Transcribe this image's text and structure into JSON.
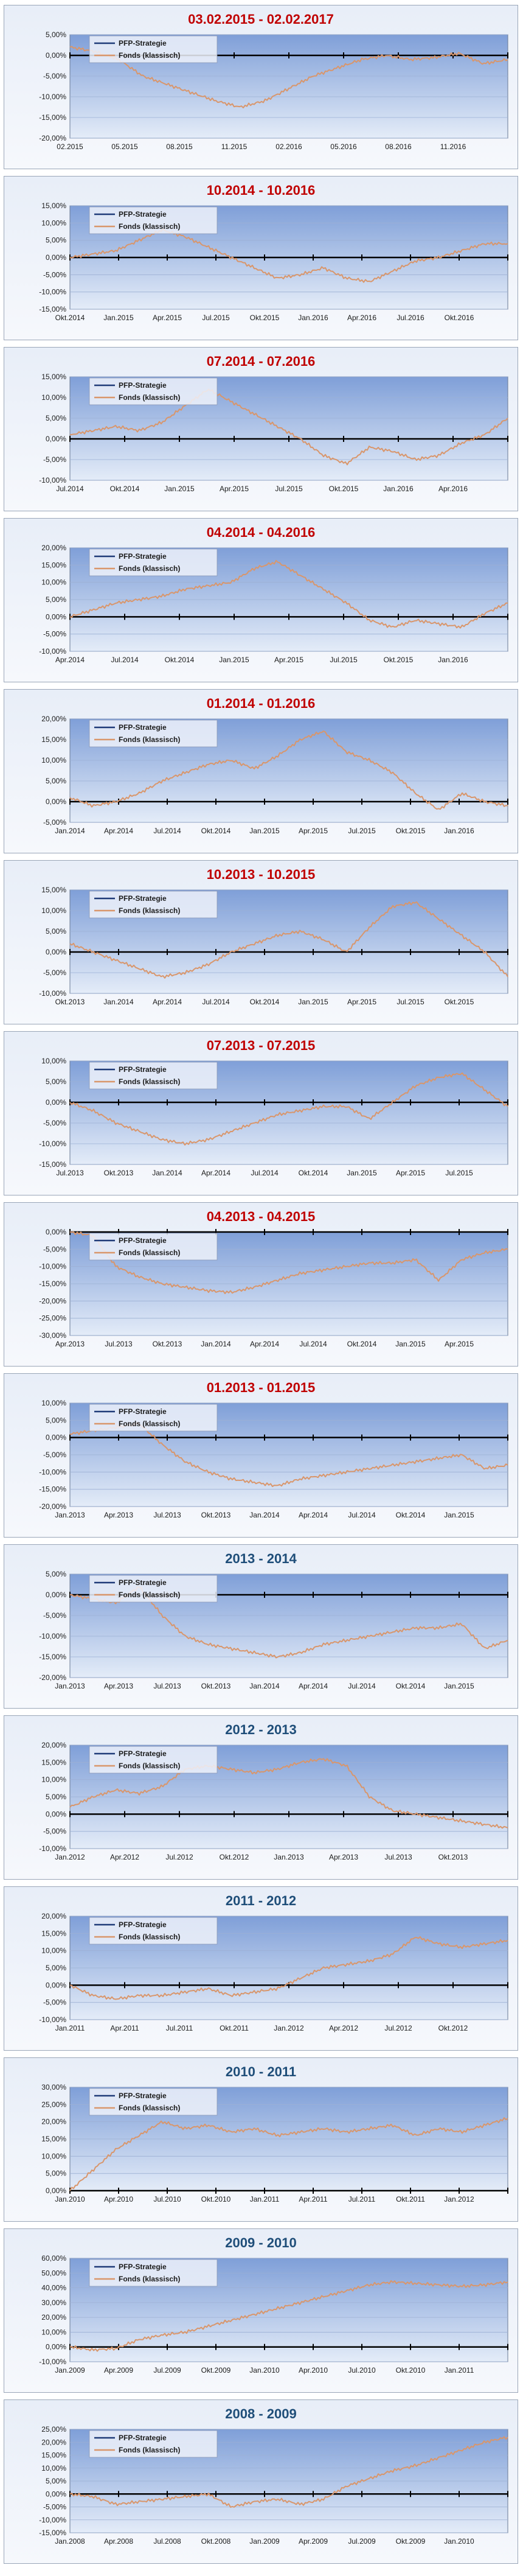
{
  "legend": {
    "strategy": "PFP-Strategie",
    "fund": "Fonds (klassisch)"
  },
  "colors": {
    "title_red": "#c00000",
    "title_blue": "#1f4e79",
    "fund_line": "#d9966b",
    "strategy_line": "#1f3a78",
    "zero_line": "#000000"
  },
  "chart_data": [
    {
      "type": "line",
      "title": "03.02.2015 - 02.02.2017",
      "title_color": "red",
      "ylim": [
        -20,
        5
      ],
      "yticks": [
        5,
        0,
        -5,
        -10,
        -15,
        -20
      ],
      "ytick_labels": [
        "5,00%",
        "0,00%",
        "-5,00%",
        "-10,00%",
        "-15,00%",
        "-20,00%"
      ],
      "xtick_labels": [
        "02.2015",
        "05.2015",
        "08.2015",
        "11.2015",
        "02.2016",
        "05.2016",
        "08.2016",
        "11.2016"
      ],
      "legend_position": "top-left",
      "fund_y": [
        2.0,
        1.0,
        -1.0,
        -5.0,
        -7.0,
        -9.0,
        -11.0,
        -12.5,
        -11.0,
        -8.0,
        -5.0,
        -3.0,
        -1.0,
        0.0,
        -1.0,
        -0.5,
        0.5,
        -2.0,
        -1.0
      ]
    },
    {
      "type": "line",
      "title": "10.2014 - 10.2016",
      "title_color": "red",
      "ylim": [
        -15,
        15
      ],
      "yticks": [
        15,
        10,
        5,
        0,
        -5,
        -10,
        -15
      ],
      "ytick_labels": [
        "15,00%",
        "10,00%",
        "5,00%",
        "0,00%",
        "-5,00%",
        "-10,00%",
        "-15,00%"
      ],
      "xtick_labels": [
        "Okt.2014",
        "Jan.2015",
        "Apr.2015",
        "Jul.2015",
        "Okt.2015",
        "Jan.2016",
        "Apr.2016",
        "Jul.2016",
        "Okt.2016"
      ],
      "legend_position": "top-left",
      "fund_y": [
        0.0,
        1.0,
        2.0,
        5.0,
        8.0,
        6.0,
        3.0,
        0.0,
        -3.0,
        -6.0,
        -5.0,
        -3.0,
        -6.0,
        -7.0,
        -4.0,
        -1.0,
        0.0,
        2.0,
        4.0,
        4.0
      ]
    },
    {
      "type": "line",
      "title": "07.2014 - 07.2016",
      "title_color": "red",
      "ylim": [
        -10,
        15
      ],
      "yticks": [
        15,
        10,
        5,
        0,
        -5,
        -10
      ],
      "ytick_labels": [
        "15,00%",
        "10,00%",
        "5,00%",
        "0,00%",
        "-5,00%",
        "-10,00%"
      ],
      "xtick_labels": [
        "Jul.2014",
        "Okt.2014",
        "Jan.2015",
        "Apr.2015",
        "Jul.2015",
        "Okt.2015",
        "Jan.2016",
        "Apr.2016"
      ],
      "legend_position": "top-left",
      "fund_y": [
        1.0,
        2.0,
        3.0,
        2.0,
        4.0,
        8.0,
        12.0,
        9.0,
        6.0,
        3.0,
        0.0,
        -4.0,
        -6.0,
        -2.0,
        -3.0,
        -5.0,
        -4.0,
        -1.0,
        1.0,
        5.0
      ]
    },
    {
      "type": "line",
      "title": "04.2014 - 04.2016",
      "title_color": "red",
      "ylim": [
        -10,
        20
      ],
      "yticks": [
        20,
        15,
        10,
        5,
        0,
        -5,
        -10
      ],
      "ytick_labels": [
        "20,00%",
        "15,00%",
        "10,00%",
        "5,00%",
        "0,00%",
        "-5,00%",
        "-10,00%"
      ],
      "xtick_labels": [
        "Apr.2014",
        "Jul.2014",
        "Okt.2014",
        "Jan.2015",
        "Apr.2015",
        "Jul.2015",
        "Okt.2015",
        "Jan.2016"
      ],
      "legend_position": "top-left",
      "fund_y": [
        0.0,
        2.0,
        4.0,
        5.0,
        6.0,
        8.0,
        9.0,
        10.0,
        14.0,
        16.0,
        12.0,
        8.0,
        4.0,
        -1.0,
        -3.0,
        -1.0,
        -2.0,
        -3.0,
        1.0,
        4.0
      ]
    },
    {
      "type": "line",
      "title": "01.2014 - 01.2016",
      "title_color": "red",
      "ylim": [
        -5,
        20
      ],
      "yticks": [
        20,
        15,
        10,
        5,
        0,
        -5
      ],
      "ytick_labels": [
        "20,00%",
        "15,00%",
        "10,00%",
        "5,00%",
        "0,00%",
        "-5,00%"
      ],
      "xtick_labels": [
        "Jan.2014",
        "Apr.2014",
        "Jul.2014",
        "Okt.2014",
        "Jan.2015",
        "Apr.2015",
        "Jul.2015",
        "Okt.2015",
        "Jan.2016"
      ],
      "legend_position": "top-left",
      "fund_y": [
        1.0,
        -1.0,
        0.0,
        2.0,
        5.0,
        7.0,
        9.0,
        10.0,
        8.0,
        11.0,
        15.0,
        17.0,
        12.0,
        10.0,
        7.0,
        2.0,
        -2.0,
        2.0,
        0.0,
        -1.0
      ]
    },
    {
      "type": "line",
      "title": "10.2013 - 10.2015",
      "title_color": "red",
      "ylim": [
        -10,
        15
      ],
      "yticks": [
        15,
        10,
        5,
        0,
        -5,
        -10
      ],
      "ytick_labels": [
        "15,00%",
        "10,00%",
        "5,00%",
        "0,00%",
        "-5,00%",
        "-10,00%"
      ],
      "xtick_labels": [
        "Okt.2013",
        "Jan.2014",
        "Apr.2014",
        "Jul.2014",
        "Okt.2014",
        "Jan.2015",
        "Apr.2015",
        "Jul.2015",
        "Okt.2015"
      ],
      "legend_position": "top-left",
      "fund_y": [
        2.0,
        0.0,
        -2.0,
        -4.0,
        -6.0,
        -5.0,
        -3.0,
        0.0,
        2.0,
        4.0,
        5.0,
        3.0,
        0.0,
        6.0,
        11.0,
        12.0,
        8.0,
        4.0,
        0.0,
        -6.0
      ]
    },
    {
      "type": "line",
      "title": "07.2013 - 07.2015",
      "title_color": "red",
      "ylim": [
        -15,
        10
      ],
      "yticks": [
        10,
        5,
        0,
        -5,
        -10,
        -15
      ],
      "ytick_labels": [
        "10,00%",
        "5,00%",
        "0,00%",
        "-5,00%",
        "-10,00%",
        "-15,00%"
      ],
      "xtick_labels": [
        "Jul.2013",
        "Okt.2013",
        "Jan.2014",
        "Apr.2014",
        "Jul.2014",
        "Okt.2014",
        "Jan.2015",
        "Apr.2015",
        "Jul.2015"
      ],
      "legend_position": "top-left",
      "fund_y": [
        0.0,
        -2.0,
        -5.0,
        -7.0,
        -9.0,
        -10.0,
        -9.0,
        -7.0,
        -5.0,
        -3.0,
        -2.0,
        -1.0,
        -1.0,
        -4.0,
        0.0,
        4.0,
        6.0,
        7.0,
        3.0,
        -1.0
      ]
    },
    {
      "type": "line",
      "title": "04.2013 - 04.2015",
      "title_color": "red",
      "ylim": [
        -30,
        0
      ],
      "yticks": [
        0,
        -5,
        -10,
        -15,
        -20,
        -25,
        -30
      ],
      "ytick_labels": [
        "0,00%",
        "-5,00%",
        "-10,00%",
        "-15,00%",
        "-20,00%",
        "-25,00%",
        "-30,00%"
      ],
      "xtick_labels": [
        "Apr.2013",
        "Jul.2013",
        "Okt.2013",
        "Jan.2014",
        "Apr.2014",
        "Jul.2014",
        "Okt.2014",
        "Jan.2015",
        "Apr.2015"
      ],
      "legend_position": "top-left",
      "fund_y": [
        0.0,
        -1.0,
        -10.0,
        -13.0,
        -15.0,
        -16.0,
        -17.0,
        -17.5,
        -16.0,
        -14.0,
        -12.0,
        -11.0,
        -10.0,
        -9.0,
        -9.0,
        -8.0,
        -14.0,
        -8.0,
        -6.0,
        -5.0
      ]
    },
    {
      "type": "line",
      "title": "01.2013 - 01.2015",
      "title_color": "red",
      "ylim": [
        -20,
        10
      ],
      "yticks": [
        10,
        5,
        0,
        -5,
        -10,
        -15,
        -20
      ],
      "ytick_labels": [
        "10,00%",
        "5,00%",
        "0,00%",
        "-5,00%",
        "-10,00%",
        "-15,00%",
        "-20,00%"
      ],
      "xtick_labels": [
        "Jan.2013",
        "Apr.2013",
        "Jul.2013",
        "Okt.2013",
        "Jan.2014",
        "Apr.2014",
        "Jul.2014",
        "Okt.2014",
        "Jan.2015"
      ],
      "legend_position": "top-left",
      "fund_y": [
        1.0,
        2.0,
        3.0,
        4.0,
        -2.0,
        -7.0,
        -10.0,
        -12.0,
        -13.0,
        -14.0,
        -12.0,
        -11.0,
        -10.0,
        -9.0,
        -8.0,
        -7.0,
        -6.0,
        -5.0,
        -9.0,
        -8.0
      ]
    },
    {
      "type": "line",
      "title": "2013 - 2014",
      "title_color": "blue",
      "ylim": [
        -20,
        5
      ],
      "yticks": [
        5,
        0,
        -5,
        -10,
        -15,
        -20
      ],
      "ytick_labels": [
        "5,00%",
        "0,00%",
        "-5,00%",
        "-10,00%",
        "-15,00%",
        "-20,00%"
      ],
      "xtick_labels": [
        "Jan.2013",
        "Apr.2013",
        "Jul.2013",
        "Okt.2013",
        "Jan.2014",
        "Apr.2014",
        "Jul.2014",
        "Okt.2014",
        "Jan.2015"
      ],
      "legend_position": "top-left",
      "fund_y": [
        0.0,
        -1.0,
        -2.0,
        2.0,
        -5.0,
        -10.0,
        -12.0,
        -13.0,
        -14.0,
        -15.0,
        -14.0,
        -12.0,
        -11.0,
        -10.0,
        -9.0,
        -8.0,
        -8.0,
        -7.0,
        -13.0,
        -11.0
      ]
    },
    {
      "type": "line",
      "title": "2012 - 2013",
      "title_color": "blue",
      "ylim": [
        -10,
        20
      ],
      "yticks": [
        20,
        15,
        10,
        5,
        0,
        -5,
        -10
      ],
      "ytick_labels": [
        "20,00%",
        "15,00%",
        "10,00%",
        "5,00%",
        "0,00%",
        "-5,00%",
        "-10,00%"
      ],
      "xtick_labels": [
        "Jan.2012",
        "Apr.2012",
        "Jul.2012",
        "Okt.2012",
        "Jan.2013",
        "Apr.2013",
        "Jul.2013",
        "Okt.2013"
      ],
      "legend_position": "top-left",
      "fund_y": [
        2.0,
        5.0,
        7.0,
        6.0,
        8.0,
        13.0,
        14.0,
        13.0,
        12.0,
        13.0,
        15.0,
        16.0,
        14.0,
        5.0,
        1.0,
        0.0,
        -1.0,
        -2.0,
        -3.0,
        -4.0
      ]
    },
    {
      "type": "line",
      "title": "2011 - 2012",
      "title_color": "blue",
      "ylim": [
        -10,
        20
      ],
      "yticks": [
        20,
        15,
        10,
        5,
        0,
        -5,
        -10
      ],
      "ytick_labels": [
        "20,00%",
        "15,00%",
        "10,00%",
        "5,00%",
        "0,00%",
        "-5,00%",
        "-10,00%"
      ],
      "xtick_labels": [
        "Jan.2011",
        "Apr.2011",
        "Jul.2011",
        "Okt.2011",
        "Jan.2012",
        "Apr.2012",
        "Jul.2012",
        "Okt.2012"
      ],
      "legend_position": "top-left",
      "fund_y": [
        0.0,
        -3.0,
        -4.0,
        -3.0,
        -3.0,
        -2.0,
        -1.0,
        -3.0,
        -2.0,
        -1.0,
        2.0,
        5.0,
        6.0,
        7.0,
        9.0,
        14.0,
        12.0,
        11.0,
        12.0,
        13.0
      ]
    },
    {
      "type": "line",
      "title": "2010 - 2011",
      "title_color": "blue",
      "ylim": [
        0,
        30
      ],
      "yticks": [
        30,
        25,
        20,
        15,
        10,
        5,
        0
      ],
      "ytick_labels": [
        "30,00%",
        "25,00%",
        "20,00%",
        "15,00%",
        "10,00%",
        "5,00%",
        "0,00%"
      ],
      "xtick_labels": [
        "Jan.2010",
        "Apr.2010",
        "Jul.2010",
        "Okt.2010",
        "Jan.2011",
        "Apr.2011",
        "Jul.2011",
        "Okt.2011",
        "Jan.2012"
      ],
      "legend_position": "top-left",
      "fund_y": [
        0.0,
        6.0,
        12.0,
        16.0,
        20.0,
        18.0,
        19.0,
        17.0,
        18.0,
        16.0,
        17.0,
        18.0,
        17.0,
        18.0,
        19.0,
        16.0,
        18.0,
        17.0,
        19.0,
        21.0
      ]
    },
    {
      "type": "line",
      "title": "2009 - 2010",
      "title_color": "blue",
      "ylim": [
        -10,
        60
      ],
      "yticks": [
        60,
        50,
        40,
        30,
        20,
        10,
        0,
        -10
      ],
      "ytick_labels": [
        "60,00%",
        "50,00%",
        "40,00%",
        "30,00%",
        "20,00%",
        "10,00%",
        "0,00%",
        "-10,00%"
      ],
      "xtick_labels": [
        "Jan.2009",
        "Apr.2009",
        "Jul.2009",
        "Okt.2009",
        "Jan.2010",
        "Apr.2010",
        "Jul.2010",
        "Okt.2010",
        "Jan.2011"
      ],
      "legend_position": "top-left",
      "fund_y": [
        0.0,
        -2.0,
        -1.0,
        5.0,
        8.0,
        10.0,
        14.0,
        18.0,
        22.0,
        26.0,
        30.0,
        34.0,
        38.0,
        42.0,
        44.0,
        43.0,
        42.0,
        41.0,
        42.0,
        44.0
      ]
    },
    {
      "type": "line",
      "title": "2008 - 2009",
      "title_color": "blue",
      "ylim": [
        -15,
        25
      ],
      "yticks": [
        25,
        20,
        15,
        10,
        5,
        0,
        -5,
        -10,
        -15
      ],
      "ytick_labels": [
        "25,00%",
        "20,00%",
        "15,00%",
        "10,00%",
        "5,00%",
        "0,00%",
        "-5,00%",
        "-10,00%",
        "-15,00%"
      ],
      "xtick_labels": [
        "Jan.2008",
        "Apr.2008",
        "Jul.2008",
        "Okt.2008",
        "Jan.2009",
        "Apr.2009",
        "Jul.2009",
        "Okt.2009",
        "Jan.2010"
      ],
      "legend_position": "top-left",
      "fund_y": [
        0.0,
        -1.0,
        -4.0,
        -3.0,
        -2.0,
        -1.0,
        0.0,
        -5.0,
        -3.0,
        -2.0,
        -4.0,
        -2.0,
        3.0,
        6.0,
        9.0,
        11.0,
        14.0,
        17.0,
        20.0,
        22.0
      ]
    }
  ]
}
